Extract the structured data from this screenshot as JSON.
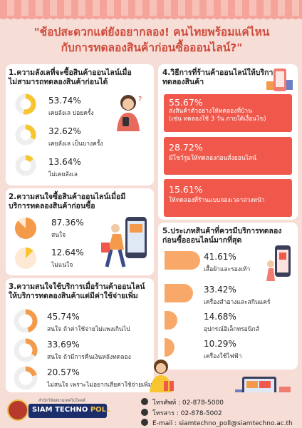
{
  "headline": {
    "line1": "\"ช้อปสะดวกแต่ยังอยากลอง! คนไทยพร้อมแค่ไหน",
    "line2": "กับการทดลองสินค้าก่อนซื้อออนไลน์?\""
  },
  "section1": {
    "title_line1": "1.ความลังเลที่จะซื้อสินค้าออนไลน์เมื่อ",
    "title_line2": "ไม่สามารถทดลองสินค้าก่อนได้",
    "items": [
      {
        "value": "53.74%",
        "label": "เคยลังเล บ่อยครั้ง"
      },
      {
        "value": "32.62%",
        "label": "เคยลังเล เป็นบางครั้ง"
      },
      {
        "value": "13.64%",
        "label": "ไม่เคยลังเล"
      }
    ]
  },
  "section2": {
    "title_line1": "2.ความสนใจซื้อสินค้าออนไลน์เมื่อมี",
    "title_line2": "บริการทดลองสินค้าก่อนซื้อ",
    "items": [
      {
        "value": "87.36%",
        "label": "สนใจ"
      },
      {
        "value": "12.64%",
        "label": "ไม่แน่ใจ"
      }
    ]
  },
  "section3": {
    "title_line1": "3.ความสนใจใช้บริการเมื่อร้านค้าออนไลน์",
    "title_line2": "ให้บริการทดลองสินค้าแต่มีค่าใช้จ่ายเพิ่ม",
    "items": [
      {
        "value": "45.74%",
        "label": "สนใจ ถ้าค่าใช้จ่ายไม่แพงเกินไป"
      },
      {
        "value": "33.69%",
        "label": "สนใจ ถ้ามีการคืนเงินหลังทดลอง"
      },
      {
        "value": "20.57%",
        "label": "ไม่สนใจ เพราะไม่อยากเสียค่าใช้จ่ายเพิ่ม"
      }
    ]
  },
  "section4": {
    "title_line1": "4.วิธีการที่ร้านค้าออนไลน์ให้บริการ",
    "title_line2": "ทดลองสินค้า",
    "items": [
      {
        "value": "55.67%",
        "line1": "ส่งสินค้าตัวอย่างให้ทดลองที่บ้าน",
        "line2": "(เช่น ทดลองใช้ 3 วัน ภายใต้เงื่อนไข)"
      },
      {
        "value": "28.72%",
        "line1": "มีโชว์รูมให้ทดลองก่อนสั่งออนไลน์",
        "line2": ""
      },
      {
        "value": "15.61%",
        "line1": "ให้ทดลองที่ร้านแบบจองเวลาล่วงหน้า",
        "line2": ""
      }
    ]
  },
  "section5": {
    "title_line1": "5.ประเภทสินค้าที่ควรมีบริการทดลอง",
    "title_line2": "ก่อนซื้อออนไลน์มากที่สุด",
    "items": [
      {
        "value": "41.61%",
        "label": "เสื้อผ้าและรองเท้า"
      },
      {
        "value": "33.42%",
        "label": "เครื่องสำอางและสกินแคร์"
      },
      {
        "value": "14.68%",
        "label": "อุปกรณ์อิเล็กทรอนิกส์"
      },
      {
        "value": "10.29%",
        "label": "เครื่องใช้ไฟฟ้า"
      }
    ]
  },
  "chart_data": [
    {
      "type": "pie",
      "title": "1.ความลังเลที่จะซื้อสินค้าออนไลน์เมื่อไม่สามารถทดลองสินค้าก่อนได้",
      "categories": [
        "เคยลังเล บ่อยครั้ง",
        "เคยลังเล เป็นบางครั้ง",
        "ไม่เคยลังเล"
      ],
      "values": [
        53.74,
        32.62,
        13.64
      ]
    },
    {
      "type": "pie",
      "title": "2.ความสนใจซื้อสินค้าออนไลน์เมื่อมีบริการทดลองสินค้าก่อนซื้อ",
      "categories": [
        "สนใจ",
        "ไม่แน่ใจ"
      ],
      "values": [
        87.36,
        12.64
      ]
    },
    {
      "type": "pie",
      "title": "3.ความสนใจใช้บริการเมื่อร้านค้าออนไลน์ให้บริการทดลองสินค้าแต่มีค่าใช้จ่ายเพิ่ม",
      "categories": [
        "สนใจ ถ้าค่าใช้จ่ายไม่แพงเกินไป",
        "สนใจ ถ้ามีการคืนเงินหลังทดลอง",
        "ไม่สนใจ เพราะไม่อยากเสียค่าใช้จ่ายเพิ่ม"
      ],
      "values": [
        45.74,
        33.69,
        20.57
      ]
    },
    {
      "type": "bar",
      "title": "4.วิธีการที่ร้านค้าออนไลน์ให้บริการทดลองสินค้า",
      "categories": [
        "ส่งสินค้าตัวอย่างให้ทดลองที่บ้าน",
        "มีโชว์รูมให้ทดลองก่อนสั่งออนไลน์",
        "ให้ทดลองที่ร้านแบบจองเวลาล่วงหน้า"
      ],
      "values": [
        55.67,
        28.72,
        15.61
      ]
    },
    {
      "type": "bar",
      "title": "5.ประเภทสินค้าที่ควรมีบริการทดลองก่อนซื้อออนไลน์มากที่สุด",
      "categories": [
        "เสื้อผ้าและรองเท้า",
        "เครื่องสำอางและสกินแคร์",
        "อุปกรณ์อิเล็กทรอนิกส์",
        "เครื่องใช้ไฟฟ้า"
      ],
      "values": [
        41.61,
        33.42,
        14.68,
        10.29
      ]
    }
  ],
  "colors": {
    "accent_red": "#f0584b",
    "ring_yellow": "#f6c52f",
    "ring_orange": "#f39b4a",
    "ring_track": "#eeeeee",
    "bar_orange": "#f8a96a",
    "title_red": "#cf4b3c"
  },
  "footer": {
    "logo_sub": "สำนักวิจัยสยามเทคโนโพลล์",
    "logo_main": "SIAM TECHNO ",
    "logo_poll": "POLL",
    "phone": "โทรศัพท์ : 02-878-5000",
    "fax": "โทรสาร   : 02-878-5002",
    "email": "E-mail   : siamtechno_poll@siamtechno.ac.th"
  }
}
